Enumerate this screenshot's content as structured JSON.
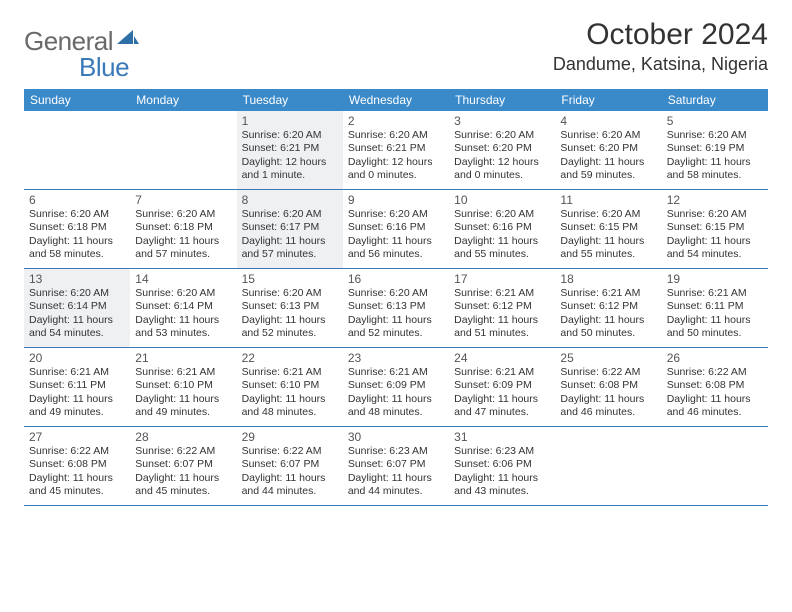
{
  "logo": {
    "general": "General",
    "blue": "Blue"
  },
  "header": {
    "title": "October 2024",
    "location": "Dandume, Katsina, Nigeria"
  },
  "style": {
    "header_bg": "#3a89c9",
    "header_text": "#ffffff",
    "rule_color": "#3a7ab8",
    "shaded_bg": "#eef0f2",
    "text_color": "#333333"
  },
  "weekdays": [
    "Sunday",
    "Monday",
    "Tuesday",
    "Wednesday",
    "Thursday",
    "Friday",
    "Saturday"
  ],
  "weeks": [
    [
      {
        "num": "",
        "sunrise": "",
        "sunset": "",
        "daylight": "",
        "shaded": false
      },
      {
        "num": "",
        "sunrise": "",
        "sunset": "",
        "daylight": "",
        "shaded": false
      },
      {
        "num": "1",
        "sunrise": "Sunrise: 6:20 AM",
        "sunset": "Sunset: 6:21 PM",
        "daylight": "Daylight: 12 hours and 1 minute.",
        "shaded": true
      },
      {
        "num": "2",
        "sunrise": "Sunrise: 6:20 AM",
        "sunset": "Sunset: 6:21 PM",
        "daylight": "Daylight: 12 hours and 0 minutes.",
        "shaded": false
      },
      {
        "num": "3",
        "sunrise": "Sunrise: 6:20 AM",
        "sunset": "Sunset: 6:20 PM",
        "daylight": "Daylight: 12 hours and 0 minutes.",
        "shaded": false
      },
      {
        "num": "4",
        "sunrise": "Sunrise: 6:20 AM",
        "sunset": "Sunset: 6:20 PM",
        "daylight": "Daylight: 11 hours and 59 minutes.",
        "shaded": false
      },
      {
        "num": "5",
        "sunrise": "Sunrise: 6:20 AM",
        "sunset": "Sunset: 6:19 PM",
        "daylight": "Daylight: 11 hours and 58 minutes.",
        "shaded": false
      }
    ],
    [
      {
        "num": "6",
        "sunrise": "Sunrise: 6:20 AM",
        "sunset": "Sunset: 6:18 PM",
        "daylight": "Daylight: 11 hours and 58 minutes.",
        "shaded": false
      },
      {
        "num": "7",
        "sunrise": "Sunrise: 6:20 AM",
        "sunset": "Sunset: 6:18 PM",
        "daylight": "Daylight: 11 hours and 57 minutes.",
        "shaded": false
      },
      {
        "num": "8",
        "sunrise": "Sunrise: 6:20 AM",
        "sunset": "Sunset: 6:17 PM",
        "daylight": "Daylight: 11 hours and 57 minutes.",
        "shaded": true
      },
      {
        "num": "9",
        "sunrise": "Sunrise: 6:20 AM",
        "sunset": "Sunset: 6:16 PM",
        "daylight": "Daylight: 11 hours and 56 minutes.",
        "shaded": false
      },
      {
        "num": "10",
        "sunrise": "Sunrise: 6:20 AM",
        "sunset": "Sunset: 6:16 PM",
        "daylight": "Daylight: 11 hours and 55 minutes.",
        "shaded": false
      },
      {
        "num": "11",
        "sunrise": "Sunrise: 6:20 AM",
        "sunset": "Sunset: 6:15 PM",
        "daylight": "Daylight: 11 hours and 55 minutes.",
        "shaded": false
      },
      {
        "num": "12",
        "sunrise": "Sunrise: 6:20 AM",
        "sunset": "Sunset: 6:15 PM",
        "daylight": "Daylight: 11 hours and 54 minutes.",
        "shaded": false
      }
    ],
    [
      {
        "num": "13",
        "sunrise": "Sunrise: 6:20 AM",
        "sunset": "Sunset: 6:14 PM",
        "daylight": "Daylight: 11 hours and 54 minutes.",
        "shaded": true
      },
      {
        "num": "14",
        "sunrise": "Sunrise: 6:20 AM",
        "sunset": "Sunset: 6:14 PM",
        "daylight": "Daylight: 11 hours and 53 minutes.",
        "shaded": false
      },
      {
        "num": "15",
        "sunrise": "Sunrise: 6:20 AM",
        "sunset": "Sunset: 6:13 PM",
        "daylight": "Daylight: 11 hours and 52 minutes.",
        "shaded": false
      },
      {
        "num": "16",
        "sunrise": "Sunrise: 6:20 AM",
        "sunset": "Sunset: 6:13 PM",
        "daylight": "Daylight: 11 hours and 52 minutes.",
        "shaded": false
      },
      {
        "num": "17",
        "sunrise": "Sunrise: 6:21 AM",
        "sunset": "Sunset: 6:12 PM",
        "daylight": "Daylight: 11 hours and 51 minutes.",
        "shaded": false
      },
      {
        "num": "18",
        "sunrise": "Sunrise: 6:21 AM",
        "sunset": "Sunset: 6:12 PM",
        "daylight": "Daylight: 11 hours and 50 minutes.",
        "shaded": false
      },
      {
        "num": "19",
        "sunrise": "Sunrise: 6:21 AM",
        "sunset": "Sunset: 6:11 PM",
        "daylight": "Daylight: 11 hours and 50 minutes.",
        "shaded": false
      }
    ],
    [
      {
        "num": "20",
        "sunrise": "Sunrise: 6:21 AM",
        "sunset": "Sunset: 6:11 PM",
        "daylight": "Daylight: 11 hours and 49 minutes.",
        "shaded": false
      },
      {
        "num": "21",
        "sunrise": "Sunrise: 6:21 AM",
        "sunset": "Sunset: 6:10 PM",
        "daylight": "Daylight: 11 hours and 49 minutes.",
        "shaded": false
      },
      {
        "num": "22",
        "sunrise": "Sunrise: 6:21 AM",
        "sunset": "Sunset: 6:10 PM",
        "daylight": "Daylight: 11 hours and 48 minutes.",
        "shaded": false
      },
      {
        "num": "23",
        "sunrise": "Sunrise: 6:21 AM",
        "sunset": "Sunset: 6:09 PM",
        "daylight": "Daylight: 11 hours and 48 minutes.",
        "shaded": false
      },
      {
        "num": "24",
        "sunrise": "Sunrise: 6:21 AM",
        "sunset": "Sunset: 6:09 PM",
        "daylight": "Daylight: 11 hours and 47 minutes.",
        "shaded": false
      },
      {
        "num": "25",
        "sunrise": "Sunrise: 6:22 AM",
        "sunset": "Sunset: 6:08 PM",
        "daylight": "Daylight: 11 hours and 46 minutes.",
        "shaded": false
      },
      {
        "num": "26",
        "sunrise": "Sunrise: 6:22 AM",
        "sunset": "Sunset: 6:08 PM",
        "daylight": "Daylight: 11 hours and 46 minutes.",
        "shaded": false
      }
    ],
    [
      {
        "num": "27",
        "sunrise": "Sunrise: 6:22 AM",
        "sunset": "Sunset: 6:08 PM",
        "daylight": "Daylight: 11 hours and 45 minutes.",
        "shaded": false
      },
      {
        "num": "28",
        "sunrise": "Sunrise: 6:22 AM",
        "sunset": "Sunset: 6:07 PM",
        "daylight": "Daylight: 11 hours and 45 minutes.",
        "shaded": false
      },
      {
        "num": "29",
        "sunrise": "Sunrise: 6:22 AM",
        "sunset": "Sunset: 6:07 PM",
        "daylight": "Daylight: 11 hours and 44 minutes.",
        "shaded": false
      },
      {
        "num": "30",
        "sunrise": "Sunrise: 6:23 AM",
        "sunset": "Sunset: 6:07 PM",
        "daylight": "Daylight: 11 hours and 44 minutes.",
        "shaded": false
      },
      {
        "num": "31",
        "sunrise": "Sunrise: 6:23 AM",
        "sunset": "Sunset: 6:06 PM",
        "daylight": "Daylight: 11 hours and 43 minutes.",
        "shaded": false
      },
      {
        "num": "",
        "sunrise": "",
        "sunset": "",
        "daylight": "",
        "shaded": false
      },
      {
        "num": "",
        "sunrise": "",
        "sunset": "",
        "daylight": "",
        "shaded": false
      }
    ]
  ]
}
